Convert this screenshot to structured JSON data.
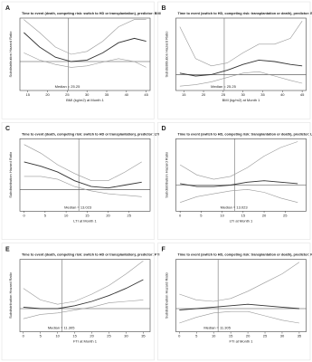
{
  "chart_data": [
    {
      "type": "line",
      "label": "A",
      "title": "Time to event (death, competing risk: switch to HD or transplantation), predictor: BMI",
      "x_label": "BMI (kg/m2) at Month 1",
      "y_label": "Subdistribution Hazard Ratio",
      "xlim": [
        13,
        46
      ],
      "xticks": [
        15,
        20,
        25,
        30,
        35,
        40,
        45
      ],
      "ylim": [
        0,
        2.5
      ],
      "reference": 1,
      "median": 25.25,
      "annotation": "Median = 25.25",
      "x": [
        14,
        18,
        22,
        26,
        30,
        34,
        38,
        42,
        45
      ],
      "series": [
        {
          "color": "#333333",
          "values": [
            2.0,
            1.5,
            1.15,
            1.0,
            1.05,
            1.3,
            1.65,
            1.8,
            1.7
          ]
        },
        {
          "color": "#999999",
          "values": [
            1.3,
            1.05,
            0.9,
            0.8,
            0.85,
            0.98,
            1.1,
            1.0,
            0.8
          ]
        },
        {
          "color": "#999999",
          "values": [
            2.45,
            2.0,
            1.5,
            1.25,
            1.35,
            1.7,
            2.2,
            2.45,
            2.45
          ]
        }
      ]
    },
    {
      "type": "line",
      "label": "B",
      "title": "Time to event (switch to HD, competing risk: transplantation or death), predictor: BMI",
      "x_label": "BMI (kg/m2) at Month 1",
      "y_label": "Subdistribution Hazard Ratio",
      "xlim": [
        13,
        46
      ],
      "xticks": [
        15,
        20,
        25,
        30,
        35,
        40,
        45
      ],
      "ylim": [
        0,
        2.5
      ],
      "reference": 0.55,
      "median": 25.25,
      "annotation": "Median = 25.25",
      "x": [
        14,
        18,
        22,
        26,
        30,
        34,
        38,
        42,
        45
      ],
      "series": [
        {
          "color": "#333333",
          "values": [
            0.6,
            0.5,
            0.55,
            0.7,
            0.9,
            1.05,
            1.0,
            0.9,
            0.85
          ]
        },
        {
          "color": "#999999",
          "values": [
            0.15,
            0.2,
            0.3,
            0.45,
            0.6,
            0.65,
            0.5,
            0.35,
            0.25
          ]
        },
        {
          "color": "#999999",
          "values": [
            2.2,
            1.1,
            0.85,
            0.95,
            1.3,
            1.6,
            1.6,
            1.8,
            2.4
          ]
        }
      ]
    },
    {
      "type": "line",
      "label": "C",
      "title": "Time to event (death, competing risk: switch to HD or transplantation), predictor: LTI",
      "x_label": "LTI at Month 1",
      "y_label": "Subdistribution Hazard Ratio",
      "xlim": [
        -1,
        30
      ],
      "xticks": [
        0,
        5,
        10,
        15,
        20,
        25
      ],
      "ylim": [
        0,
        2.5
      ],
      "reference": 0.75,
      "median": 13.023,
      "annotation": "Median = 13.023",
      "x": [
        0,
        4,
        8,
        12,
        16,
        20,
        24,
        28
      ],
      "series": [
        {
          "color": "#333333",
          "values": [
            1.7,
            1.55,
            1.35,
            1.05,
            0.85,
            0.8,
            0.9,
            1.0
          ]
        },
        {
          "color": "#999999",
          "values": [
            1.2,
            1.2,
            1.1,
            0.85,
            0.7,
            0.6,
            0.55,
            0.5
          ]
        },
        {
          "color": "#999999",
          "values": [
            2.3,
            2.0,
            1.6,
            1.3,
            1.05,
            1.05,
            1.35,
            1.7
          ]
        }
      ]
    },
    {
      "type": "line",
      "label": "D",
      "title": "Time to event (switch to HD, competing risk: transplantation or death), predictor: LTI",
      "x_label": "LTI at Month 1",
      "y_label": "Subdistribution Hazard Ratio",
      "xlim": [
        -1,
        30
      ],
      "xticks": [
        0,
        5,
        10,
        15,
        20,
        25
      ],
      "ylim": [
        0,
        2.5
      ],
      "reference": 0.9,
      "median": 13.023,
      "annotation": "Median = 13.023",
      "x": [
        0,
        4,
        8,
        12,
        16,
        20,
        24,
        28
      ],
      "series": [
        {
          "color": "#333333",
          "values": [
            0.95,
            0.85,
            0.85,
            0.9,
            1.0,
            1.05,
            1.0,
            0.95
          ]
        },
        {
          "color": "#999999",
          "values": [
            0.3,
            0.5,
            0.6,
            0.7,
            0.75,
            0.65,
            0.45,
            0.3
          ]
        },
        {
          "color": "#999999",
          "values": [
            1.6,
            1.25,
            1.1,
            1.2,
            1.5,
            1.9,
            2.2,
            2.4
          ]
        }
      ]
    },
    {
      "type": "line",
      "label": "E",
      "title": "Time to event (death, competing risk: switch to HD or transplantation), predictor: FTI",
      "x_label": "FTI at Month 1",
      "y_label": "Subdistribution Hazard Ratio",
      "xlim": [
        -1,
        37
      ],
      "xticks": [
        0,
        5,
        10,
        15,
        20,
        25,
        30,
        35
      ],
      "ylim": [
        0,
        2.5
      ],
      "reference": 0.8,
      "median": 11.305,
      "annotation": "Median = 11.305",
      "x": [
        0,
        5,
        10,
        15,
        20,
        25,
        30,
        35
      ],
      "series": [
        {
          "color": "#333333",
          "values": [
            0.85,
            0.8,
            0.8,
            0.9,
            1.05,
            1.25,
            1.5,
            1.8
          ]
        },
        {
          "color": "#999999",
          "values": [
            0.45,
            0.6,
            0.65,
            0.75,
            0.85,
            1.0,
            1.05,
            1.1
          ]
        },
        {
          "color": "#999999",
          "values": [
            1.5,
            1.1,
            0.95,
            1.05,
            1.3,
            1.6,
            2.0,
            2.45
          ]
        }
      ]
    },
    {
      "type": "line",
      "label": "F",
      "title": "Time to event (switch to HD, competing risk: transplantation or death), predictor: FTI",
      "x_label": "FTI at Month 1",
      "y_label": "Subdistribution Hazard Ratio",
      "xlim": [
        -1,
        37
      ],
      "xticks": [
        0,
        5,
        10,
        15,
        20,
        25,
        30,
        35
      ],
      "ylim": [
        0,
        2.5
      ],
      "reference": 0.8,
      "median": 11.305,
      "annotation": "Median = 11.305",
      "x": [
        0,
        5,
        10,
        15,
        20,
        25,
        30,
        35
      ],
      "series": [
        {
          "color": "#333333",
          "values": [
            0.75,
            0.8,
            0.85,
            0.9,
            0.95,
            0.9,
            0.85,
            0.8
          ]
        },
        {
          "color": "#999999",
          "values": [
            0.3,
            0.5,
            0.65,
            0.7,
            0.7,
            0.55,
            0.4,
            0.3
          ]
        },
        {
          "color": "#999999",
          "values": [
            1.3,
            1.1,
            1.05,
            1.15,
            1.4,
            1.7,
            2.0,
            2.4
          ]
        }
      ]
    }
  ]
}
